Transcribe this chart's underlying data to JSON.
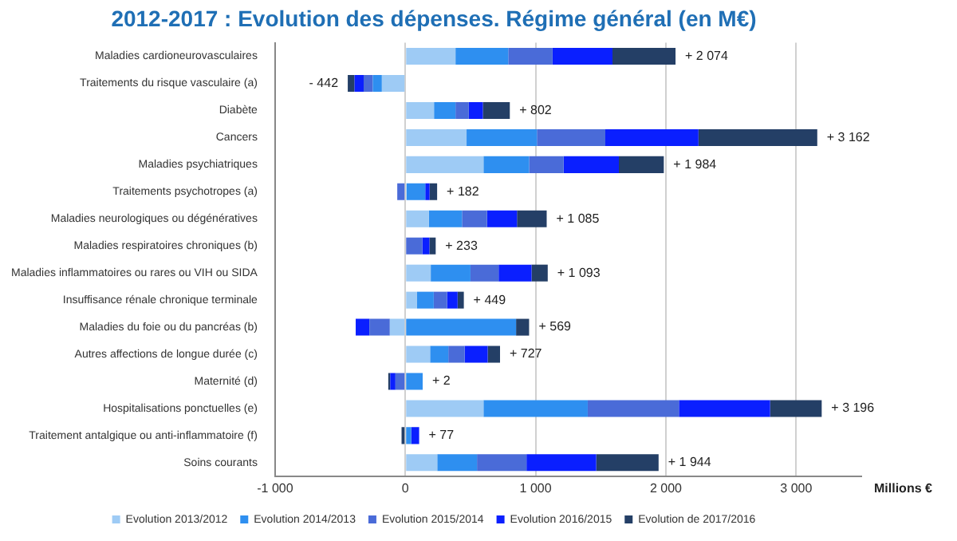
{
  "chart_data": {
    "type": "bar",
    "orientation": "horizontal",
    "stacked": true,
    "title": "2012-2017 : Evolution des dépenses. Régime général (en M€)",
    "xlabel": "Millions €",
    "categories": [
      "Maladies cardioneurovasculaires",
      "Traitements du risque vasculaire (a)",
      "Diabète",
      "Cancers",
      "Maladies psychiatriques",
      "Traitements psychotropes (a)",
      "Maladies neurologiques ou dégénératives",
      "Maladies respiratoires chroniques (b)",
      "Maladies inflammatoires ou rares ou VIH ou SIDA",
      "Insuffisance rénale chronique terminale",
      "Maladies du foie ou du pancréas (b)",
      "Autres affections de longue durée (c)",
      "Maternité (d)",
      "Hospitalisations ponctuelles (e)",
      "Traitement antalgique ou anti-inflammatoire (f)",
      "Soins courants"
    ],
    "series": [
      {
        "name": "Evolution 2013/2012",
        "color": "#9ecbf5",
        "values": [
          385,
          -180,
          220,
          470,
          600,
          10,
          180,
          null,
          195,
          90,
          -119,
          190,
          0,
          600,
          0,
          245
        ]
      },
      {
        "name": "Evolution 2014/2013",
        "color": "#2e8ff0",
        "values": [
          405,
          -70,
          165,
          540,
          350,
          143,
          255,
          null,
          305,
          128,
          850,
          140,
          133,
          800,
          45,
          305
        ]
      },
      {
        "name": "Evolution 2015/2014",
        "color": "#4a6bd8",
        "values": [
          340,
          -70,
          102,
          525,
          265,
          -62,
          192,
          130,
          216,
          102,
          -157,
          125,
          -76,
          700,
          0,
          380
        ]
      },
      {
        "name": "Evolution 2016/2015",
        "color": "#0a1fff",
        "values": [
          460,
          -70,
          108,
          715,
          424,
          33,
          230,
          55,
          253,
          81,
          -105,
          177,
          -40,
          700,
          61,
          535
        ]
      },
      {
        "name": "Evolution de 2017/2016",
        "color": "#243f66",
        "values": [
          484,
          -52,
          207,
          912,
          345,
          58,
          228,
          48,
          124,
          48,
          100,
          95,
          -15,
          396,
          -29,
          479
        ]
      }
    ],
    "totals": [
      "+ 2 074",
      "- 442",
      "+ 802",
      "+ 3 162",
      "+ 1 984",
      "+ 182",
      "+ 1 085",
      "+ 233",
      "+ 1 093",
      "+ 449",
      "+ 569",
      "+ 727",
      "+ 2",
      "+ 3 196",
      "+ 77",
      "+ 1 944"
    ],
    "xlim": [
      -1000,
      3500
    ],
    "xticks": [
      {
        "value": -1000,
        "label": "-1 000"
      },
      0,
      {
        "value": 1000,
        "label": "1 000"
      },
      {
        "value": 2000,
        "label": "2 000"
      },
      {
        "value": 3000,
        "label": "3 000"
      }
    ],
    "grid": "x",
    "legend": "bottom"
  }
}
